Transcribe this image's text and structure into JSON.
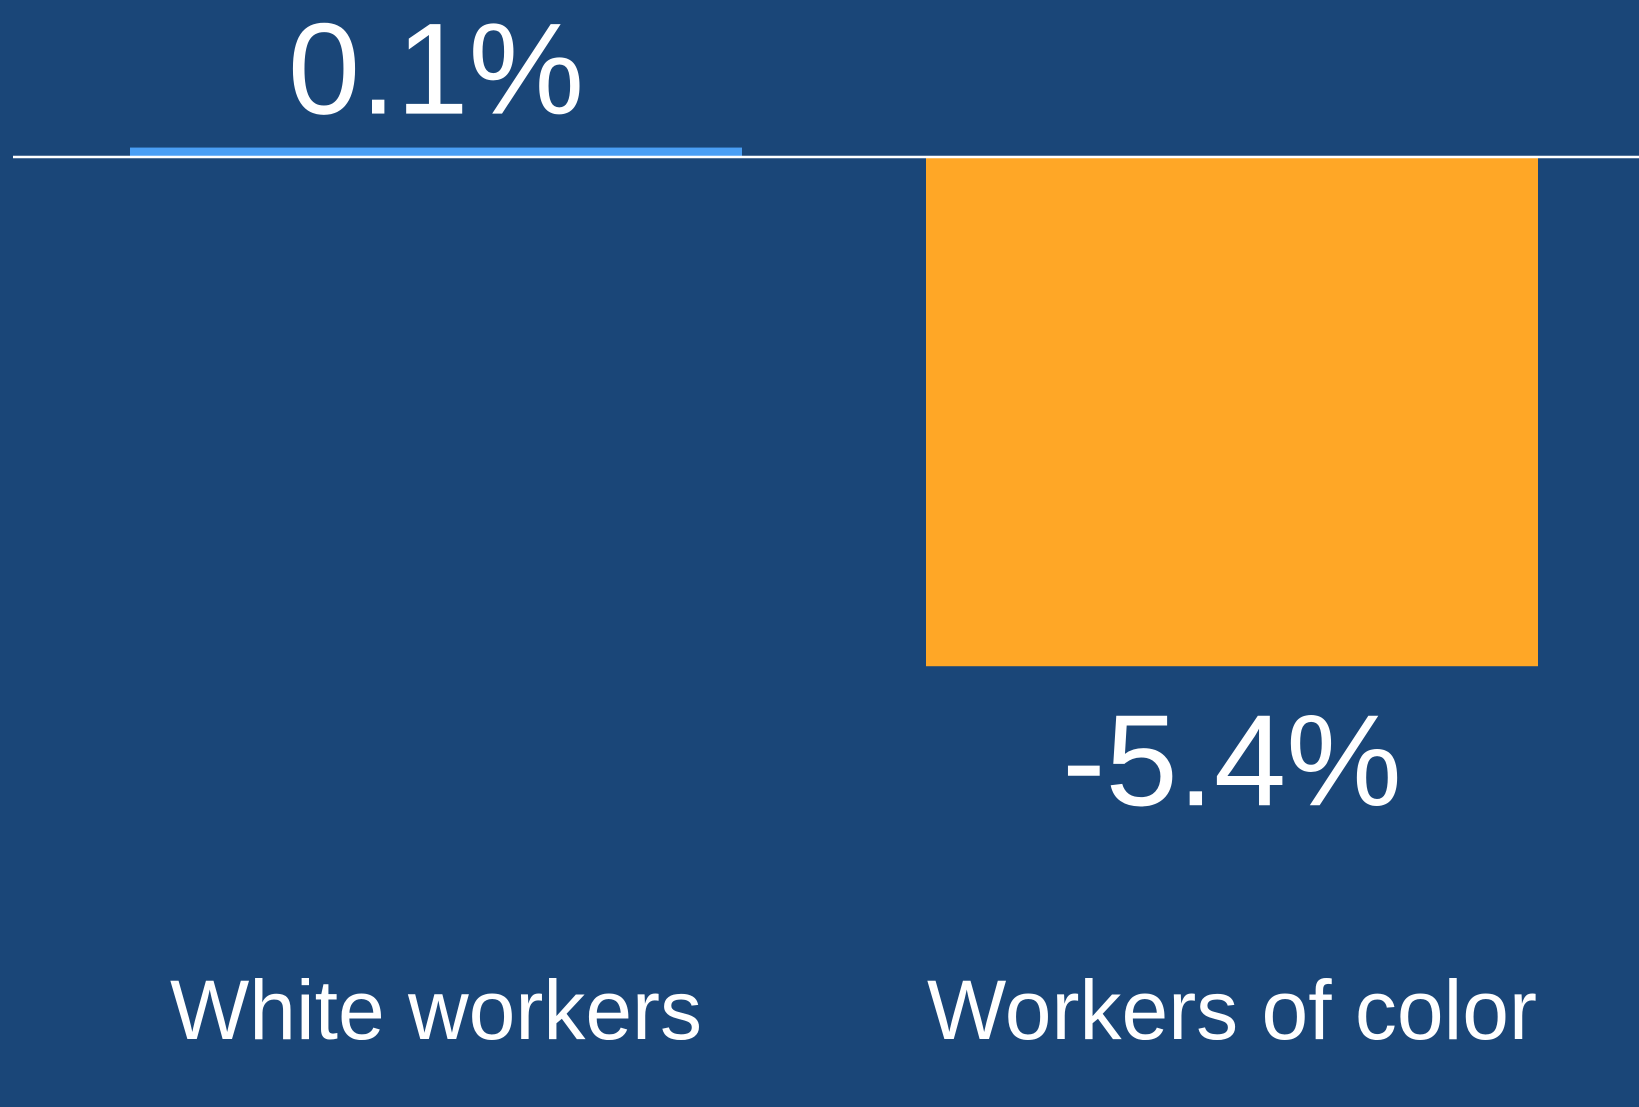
{
  "chart_data": {
    "type": "bar",
    "categories": [
      "White workers",
      "Workers of color"
    ],
    "values": [
      0.1,
      -5.4
    ],
    "value_labels": [
      "0.1%",
      "-5.4%"
    ],
    "colors": [
      "#4a9ff5",
      "#ffa726"
    ],
    "ylim": [
      -6,
      1
    ]
  }
}
